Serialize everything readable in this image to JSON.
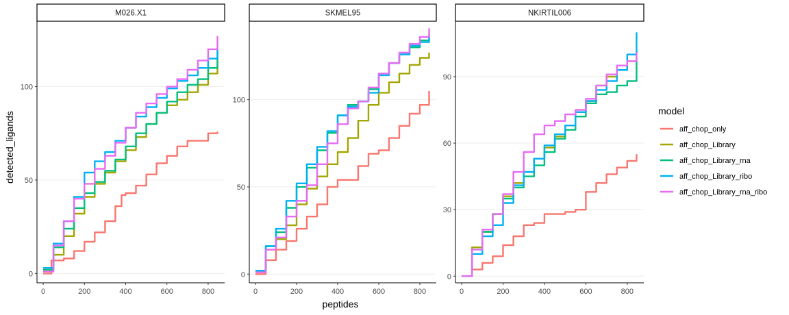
{
  "chart_data": {
    "type": "line",
    "xlabel": "peptides",
    "ylabel": "detected_ligands",
    "grid": "horizontal major lines",
    "legend": {
      "title": "model",
      "placement": "right",
      "entries": [
        {
          "name": "aff_chop_only",
          "color": "#F8766D"
        },
        {
          "name": "aff_chop_Library",
          "color": "#A3A500"
        },
        {
          "name": "aff_chop_Library_rna",
          "color": "#00BF7D"
        },
        {
          "name": "aff_chop_Library_ribo",
          "color": "#00B0F6"
        },
        {
          "name": "aff_chop_Library_rna_ribo",
          "color": "#E76BF3"
        }
      ]
    },
    "panels": [
      {
        "title": "M026.X1",
        "xlim": [
          -30,
          880
        ],
        "ylim": [
          -5,
          135
        ],
        "xticks": [
          0,
          200,
          400,
          600,
          800
        ],
        "xtick_labels": [
          "0",
          "200",
          "400",
          "600",
          "800"
        ],
        "yticks": [
          0,
          50,
          100
        ],
        "ytick_labels": [
          "0",
          "50",
          "100"
        ],
        "series": [
          {
            "name": "aff_chop_only",
            "x": [
              0,
              40,
              100,
              150,
              200,
              250,
              300,
              350,
              380,
              400,
              450,
              500,
              550,
              600,
              650,
              700,
              750,
              800,
              845
            ],
            "y": [
              0,
              7,
              8,
              12,
              17,
              22,
              28,
              36,
              42,
              43,
              47,
              53,
              59,
              63,
              68,
              71,
              71,
              75,
              76
            ]
          },
          {
            "name": "aff_chop_Library",
            "x": [
              0,
              50,
              100,
              150,
              200,
              250,
              300,
              350,
              400,
              450,
              500,
              550,
              600,
              650,
              700,
              750,
              800,
              845
            ],
            "y": [
              2,
              10,
              20,
              32,
              41,
              48,
              54,
              60,
              66,
              73,
              80,
              86,
              90,
              93,
              97,
              101,
              107,
              114
            ]
          },
          {
            "name": "aff_chop_Library_rna",
            "x": [
              0,
              50,
              100,
              150,
              200,
              250,
              300,
              350,
              400,
              450,
              500,
              550,
              600,
              650,
              700,
              750,
              800,
              845
            ],
            "y": [
              2,
              14,
              24,
              35,
              43,
              49,
              55,
              61,
              68,
              75,
              80,
              86,
              92,
              97,
              101,
              104,
              110,
              119
            ]
          },
          {
            "name": "aff_chop_Library_ribo",
            "x": [
              0,
              50,
              100,
              150,
              200,
              250,
              300,
              350,
              400,
              450,
              500,
              550,
              600,
              650,
              700,
              750,
              800,
              845
            ],
            "y": [
              3,
              16,
              28,
              41,
              54,
              60,
              65,
              71,
              78,
              84,
              89,
              94,
              99,
              103,
              106,
              110,
              115,
              121
            ]
          },
          {
            "name": "aff_chop_Library_rna_ribo",
            "x": [
              0,
              50,
              100,
              150,
              200,
              250,
              300,
              350,
              400,
              450,
              500,
              550,
              600,
              650,
              700,
              750,
              800,
              845
            ],
            "y": [
              1,
              15,
              28,
              40,
              48,
              56,
              63,
              70,
              78,
              86,
              91,
              96,
              100,
              104,
              109,
              114,
              120,
              127
            ]
          }
        ]
      },
      {
        "title": "SKMEL95",
        "xlim": [
          -30,
          880
        ],
        "ylim": [
          -5,
          145
        ],
        "xticks": [
          0,
          200,
          400,
          600,
          800
        ],
        "xtick_labels": [
          "0",
          "200",
          "400",
          "600",
          "800"
        ],
        "yticks": [
          0,
          50,
          100
        ],
        "ytick_labels": [
          "0",
          "50",
          "100"
        ],
        "series": [
          {
            "name": "aff_chop_only",
            "x": [
              0,
              50,
              100,
              150,
              200,
              250,
              300,
              350,
              400,
              450,
              500,
              550,
              600,
              650,
              700,
              750,
              800,
              845
            ],
            "y": [
              0,
              8,
              14,
              19,
              26,
              33,
              40,
              50,
              54,
              54,
              62,
              69,
              71,
              78,
              85,
              92,
              97,
              105
            ]
          },
          {
            "name": "aff_chop_Library",
            "x": [
              0,
              50,
              100,
              150,
              200,
              250,
              300,
              350,
              400,
              450,
              500,
              550,
              600,
              650,
              700,
              750,
              800,
              845
            ],
            "y": [
              2,
              14,
              20,
              28,
              40,
              49,
              56,
              63,
              70,
              78,
              88,
              97,
              104,
              110,
              115,
              120,
              124,
              127
            ]
          },
          {
            "name": "aff_chop_Library_rna",
            "x": [
              0,
              50,
              100,
              150,
              200,
              250,
              300,
              350,
              400,
              450,
              500,
              550,
              600,
              650,
              700,
              750,
              800,
              845
            ],
            "y": [
              2,
              16,
              24,
              38,
              50,
              61,
              71,
              81,
              91,
              97,
              99,
              106,
              115,
              121,
              126,
              130,
              134,
              138
            ]
          },
          {
            "name": "aff_chop_Library_ribo",
            "x": [
              0,
              50,
              100,
              150,
              200,
              250,
              300,
              350,
              400,
              450,
              500,
              550,
              600,
              650,
              700,
              750,
              800,
              845
            ],
            "y": [
              2,
              16,
              26,
              42,
              52,
              63,
              73,
              82,
              91,
              96,
              99,
              104,
              114,
              121,
              126,
              131,
              133,
              136
            ]
          },
          {
            "name": "aff_chop_Library_rna_ribo",
            "x": [
              0,
              50,
              100,
              150,
              200,
              250,
              300,
              350,
              400,
              450,
              500,
              550,
              600,
              650,
              700,
              750,
              800,
              845
            ],
            "y": [
              1,
              14,
              21,
              33,
              42,
              51,
              63,
              75,
              86,
              95,
              99,
              107,
              115,
              121,
              127,
              132,
              136,
              141
            ]
          }
        ]
      },
      {
        "title": "NKIRTIL006",
        "xlim": [
          -30,
          880
        ],
        "ylim": [
          -3,
          115
        ],
        "xticks": [
          0,
          200,
          400,
          600,
          800
        ],
        "xtick_labels": [
          "0",
          "200",
          "400",
          "600",
          "800"
        ],
        "yticks": [
          0,
          30,
          60,
          90
        ],
        "ytick_labels": [
          "0",
          "30",
          "60",
          "90"
        ],
        "series": [
          {
            "name": "aff_chop_only",
            "x": [
              0,
              50,
              100,
              150,
              200,
              250,
              300,
              350,
              400,
              450,
              500,
              550,
              600,
              650,
              700,
              750,
              800,
              845
            ],
            "y": [
              0,
              3,
              6,
              9,
              14,
              18,
              23,
              24,
              28,
              28,
              29,
              30,
              38,
              42,
              46,
              49,
              52,
              55
            ]
          },
          {
            "name": "aff_chop_Library",
            "x": [
              0,
              50,
              100,
              150,
              200,
              250,
              300,
              350,
              400,
              450,
              500,
              550,
              600,
              650,
              700,
              750,
              800,
              845
            ],
            "y": [
              0,
              13,
              20,
              28,
              36,
              42,
              47,
              53,
              58,
              63,
              68,
              74,
              79,
              86,
              90,
              93,
              97,
              102
            ]
          },
          {
            "name": "aff_chop_Library_rna",
            "x": [
              0,
              50,
              100,
              150,
              200,
              250,
              300,
              350,
              400,
              450,
              500,
              550,
              600,
              650,
              700,
              750,
              800,
              845
            ],
            "y": [
              0,
              12,
              20,
              28,
              35,
              40,
              45,
              50,
              56,
              62,
              66,
              72,
              78,
              82,
              83,
              86,
              88,
              98
            ]
          },
          {
            "name": "aff_chop_Library_ribo",
            "x": [
              0,
              50,
              100,
              150,
              200,
              250,
              300,
              350,
              400,
              450,
              500,
              550,
              600,
              650,
              700,
              750,
              800,
              845
            ],
            "y": [
              0,
              10,
              18,
              23,
              33,
              41,
              47,
              53,
              59,
              64,
              68,
              74,
              79,
              84,
              88,
              93,
              100,
              110
            ]
          },
          {
            "name": "aff_chop_Library_rna_ribo",
            "x": [
              0,
              50,
              100,
              150,
              200,
              250,
              300,
              350,
              400,
              450,
              500,
              550,
              600,
              650,
              700,
              750,
              800,
              845
            ],
            "y": [
              0,
              12,
              21,
              28,
              37,
              47,
              56,
              64,
              68,
              70,
              73,
              75,
              80,
              86,
              91,
              95,
              97,
              101
            ]
          }
        ]
      }
    ]
  }
}
